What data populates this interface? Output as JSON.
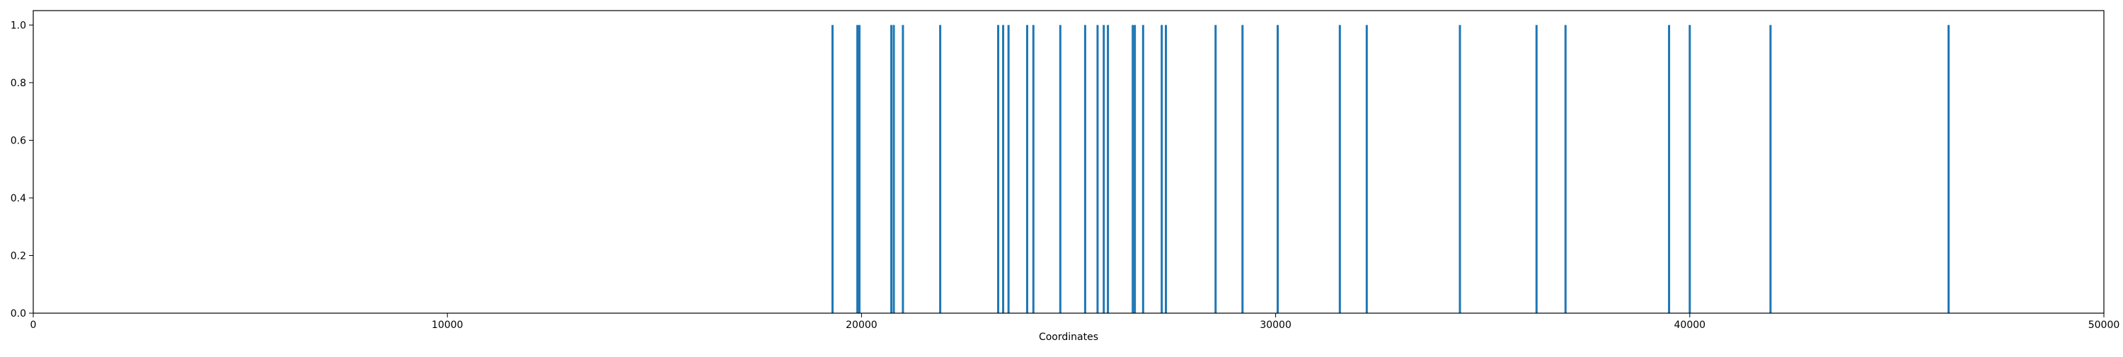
{
  "chart_data": {
    "type": "bar",
    "title": "",
    "xlabel": "Coordinates",
    "ylabel": "",
    "xlim": [
      0,
      50000
    ],
    "ylim": [
      0,
      1.05
    ],
    "grid": false,
    "legend": "none",
    "x_ticks": [
      0,
      10000,
      20000,
      30000,
      40000,
      50000
    ],
    "x_tick_labels": [
      "0",
      "10000",
      "20000",
      "30000",
      "40000",
      "50000"
    ],
    "y_ticks": [
      0,
      0.2,
      0.4,
      0.6,
      0.8,
      1.0
    ],
    "y_tick_labels": [
      "0.0",
      "0.2",
      "0.4",
      "0.6",
      "0.8",
      "1.0"
    ],
    "bar_color": "#1f77b4",
    "x": [
      19300,
      19900,
      19950,
      20720,
      20780,
      21000,
      21900,
      23300,
      23420,
      23550,
      24000,
      24150,
      24800,
      25400,
      25700,
      25850,
      25950,
      26550,
      26600,
      26800,
      27250,
      27350,
      28550,
      29200,
      30050,
      31550,
      32200,
      34450,
      36300,
      37000,
      39500,
      40000,
      41950,
      46250
    ],
    "values": [
      1,
      1,
      1,
      1,
      1,
      1,
      1,
      1,
      1,
      1,
      1,
      1,
      1,
      1,
      1,
      1,
      1,
      1,
      1,
      1,
      1,
      1,
      1,
      1,
      1,
      1,
      1,
      1,
      1,
      1,
      1,
      1,
      1,
      1
    ]
  }
}
